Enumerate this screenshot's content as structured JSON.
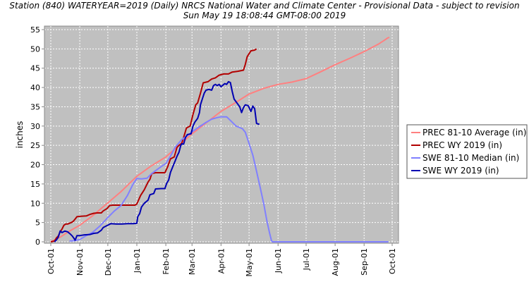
{
  "title_line1": "Station (840) WATERYEAR=2019 (Daily) NRCS National Water and Climate Center - Provisional Data - subject to revision",
  "title_line2": "Sun May 19 18:08:44 GMT-08:00 2019",
  "chart_data": {
    "type": "line",
    "ylabel": "inches",
    "ylim": [
      0,
      56
    ],
    "yticks": [
      0,
      5,
      10,
      15,
      20,
      25,
      30,
      35,
      40,
      45,
      50,
      55
    ],
    "xlim": [
      0,
      365
    ],
    "xticks": [
      {
        "label": "Oct-01",
        "day": 0
      },
      {
        "label": "Nov-01",
        "day": 31
      },
      {
        "label": "Dec-01",
        "day": 61
      },
      {
        "label": "Jan-01",
        "day": 92
      },
      {
        "label": "Feb-01",
        "day": 123
      },
      {
        "label": "Mar-01",
        "day": 151
      },
      {
        "label": "Apr-01",
        "day": 182
      },
      {
        "label": "May-01",
        "day": 212
      },
      {
        "label": "Jun-01",
        "day": 243
      },
      {
        "label": "Jul-01",
        "day": 273
      },
      {
        "label": "Aug-01",
        "day": 304
      },
      {
        "label": "Sep-01",
        "day": 335
      },
      {
        "label": "Oct-01",
        "day": 365
      }
    ],
    "grid": true,
    "background": "#c0c0c0",
    "legend_position": "right",
    "series": [
      {
        "name": "PREC 81-10 Average (in)",
        "color": "#ff8080",
        "points": [
          [
            0,
            0
          ],
          [
            10,
            1.2
          ],
          [
            20,
            2.8
          ],
          [
            31,
            4.3
          ],
          [
            45,
            6.8
          ],
          [
            61,
            10.1
          ],
          [
            75,
            13
          ],
          [
            92,
            17
          ],
          [
            107,
            19.6
          ],
          [
            123,
            22
          ],
          [
            137,
            25
          ],
          [
            151,
            28
          ],
          [
            166,
            30.8
          ],
          [
            182,
            33.8
          ],
          [
            197,
            36
          ],
          [
            212,
            38.3
          ],
          [
            228,
            39.8
          ],
          [
            243,
            40.8
          ],
          [
            258,
            41.4
          ],
          [
            273,
            42.3
          ],
          [
            288,
            44
          ],
          [
            304,
            45.9
          ],
          [
            320,
            47.6
          ],
          [
            335,
            49.3
          ],
          [
            350,
            51.2
          ],
          [
            357,
            52.3
          ],
          [
            360,
            52.8
          ],
          [
            362,
            53
          ]
        ]
      },
      {
        "name": "PREC WY 2019  (in)",
        "color": "#b20000",
        "points": [
          [
            0,
            0
          ],
          [
            4,
            0.2
          ],
          [
            6,
            1
          ],
          [
            8,
            1.5
          ],
          [
            10,
            2.6
          ],
          [
            12,
            3.3
          ],
          [
            14,
            4.3
          ],
          [
            16,
            4.6
          ],
          [
            18,
            4.6
          ],
          [
            20,
            4.8
          ],
          [
            22,
            5
          ],
          [
            24,
            5.3
          ],
          [
            26,
            5.9
          ],
          [
            28,
            6.5
          ],
          [
            31,
            6.6
          ],
          [
            38,
            6.7
          ],
          [
            42,
            7.1
          ],
          [
            46,
            7.4
          ],
          [
            50,
            7.5
          ],
          [
            54,
            7.5
          ],
          [
            56,
            8
          ],
          [
            60,
            8.6
          ],
          [
            63,
            9.4
          ],
          [
            66,
            9.5
          ],
          [
            72,
            9.5
          ],
          [
            78,
            9.5
          ],
          [
            84,
            9.5
          ],
          [
            90,
            9.5
          ],
          [
            92,
            9.8
          ],
          [
            96,
            12
          ],
          [
            100,
            13.5
          ],
          [
            104,
            15.5
          ],
          [
            106,
            16.2
          ],
          [
            108,
            17.7
          ],
          [
            112,
            17.9
          ],
          [
            118,
            17.9
          ],
          [
            122,
            17.9
          ],
          [
            125,
            19.5
          ],
          [
            128,
            21.5
          ],
          [
            132,
            22
          ],
          [
            135,
            24.5
          ],
          [
            137,
            25
          ],
          [
            140,
            25.5
          ],
          [
            142,
            27
          ],
          [
            145,
            29.5
          ],
          [
            149,
            30
          ],
          [
            152,
            33
          ],
          [
            155,
            35.5
          ],
          [
            157,
            36
          ],
          [
            160,
            38.5
          ],
          [
            163,
            41.2
          ],
          [
            168,
            41.5
          ],
          [
            172,
            42.2
          ],
          [
            176,
            42.5
          ],
          [
            180,
            43.2
          ],
          [
            185,
            43.5
          ],
          [
            190,
            43.5
          ],
          [
            194,
            44
          ],
          [
            200,
            44.2
          ],
          [
            206,
            44.5
          ],
          [
            208,
            46
          ],
          [
            210,
            48
          ],
          [
            214,
            49.5
          ],
          [
            218,
            49.7
          ],
          [
            220,
            50
          ]
        ]
      },
      {
        "name": "SWE 81-10 Median (in)",
        "color": "#8080ff",
        "points": [
          [
            20,
            0.2
          ],
          [
            25,
            0.3
          ],
          [
            31,
            0.6
          ],
          [
            38,
            1.6
          ],
          [
            45,
            2.5
          ],
          [
            53,
            4.2
          ],
          [
            61,
            6.3
          ],
          [
            68,
            8
          ],
          [
            75,
            9.4
          ],
          [
            82,
            12
          ],
          [
            88,
            15
          ],
          [
            92,
            16.4
          ],
          [
            97,
            16.3
          ],
          [
            103,
            16.5
          ],
          [
            108,
            17.7
          ],
          [
            113,
            18.6
          ],
          [
            118,
            19.5
          ],
          [
            123,
            20.3
          ],
          [
            128,
            22.2
          ],
          [
            133,
            24.5
          ],
          [
            140,
            26.5
          ],
          [
            146,
            27.5
          ],
          [
            151,
            28.5
          ],
          [
            158,
            29.7
          ],
          [
            165,
            30.8
          ],
          [
            172,
            31.8
          ],
          [
            178,
            32.2
          ],
          [
            182,
            32.4
          ],
          [
            188,
            32.4
          ],
          [
            194,
            31
          ],
          [
            198,
            30
          ],
          [
            202,
            29.6
          ],
          [
            205,
            29.3
          ],
          [
            208,
            28.4
          ],
          [
            212,
            25.5
          ],
          [
            216,
            22.5
          ],
          [
            220,
            18.3
          ],
          [
            224,
            14
          ],
          [
            228,
            9.5
          ],
          [
            231,
            5.5
          ],
          [
            234,
            2.2
          ],
          [
            236,
            0.3
          ],
          [
            237,
            0
          ],
          [
            260,
            0
          ],
          [
            300,
            0
          ],
          [
            340,
            0
          ],
          [
            361,
            0
          ]
        ]
      },
      {
        "name": "SWE WY 2019  (in)",
        "color": "#0000b2",
        "points": [
          [
            4,
            0
          ],
          [
            6,
            0.5
          ],
          [
            8,
            1.2
          ],
          [
            10,
            2.8
          ],
          [
            12,
            2.4
          ],
          [
            15,
            2.8
          ],
          [
            18,
            2.6
          ],
          [
            21,
            2
          ],
          [
            23,
            1.5
          ],
          [
            25,
            0.8
          ],
          [
            26,
            0.4
          ],
          [
            28,
            1.6
          ],
          [
            31,
            1.6
          ],
          [
            36,
            1.8
          ],
          [
            42,
            1.9
          ],
          [
            46,
            2.2
          ],
          [
            50,
            2.3
          ],
          [
            54,
            3
          ],
          [
            56,
            3.7
          ],
          [
            60,
            4.2
          ],
          [
            64,
            4.7
          ],
          [
            70,
            4.6
          ],
          [
            76,
            4.6
          ],
          [
            82,
            4.7
          ],
          [
            88,
            4.7
          ],
          [
            92,
            4.8
          ],
          [
            93,
            6.5
          ],
          [
            95,
            7.3
          ],
          [
            97,
            9
          ],
          [
            100,
            10
          ],
          [
            104,
            10.8
          ],
          [
            106,
            12.2
          ],
          [
            110,
            12.5
          ],
          [
            112,
            13.7
          ],
          [
            118,
            13.8
          ],
          [
            122,
            13.8
          ],
          [
            124,
            15.2
          ],
          [
            126,
            16
          ],
          [
            128,
            18
          ],
          [
            131,
            19.8
          ],
          [
            133,
            21
          ],
          [
            135,
            22.2
          ],
          [
            137,
            23.2
          ],
          [
            139,
            25
          ],
          [
            140,
            25.4
          ],
          [
            142,
            25.3
          ],
          [
            144,
            27
          ],
          [
            146,
            27.8
          ],
          [
            150,
            28
          ],
          [
            152,
            30
          ],
          [
            154,
            31
          ],
          [
            157,
            32
          ],
          [
            159,
            33.5
          ],
          [
            160,
            35.5
          ],
          [
            162,
            37
          ],
          [
            164,
            38.5
          ],
          [
            166,
            39.3
          ],
          [
            169,
            39.5
          ],
          [
            172,
            39.3
          ],
          [
            174,
            40.5
          ],
          [
            176,
            40.8
          ],
          [
            178,
            40.5
          ],
          [
            180,
            40.8
          ],
          [
            182,
            40.2
          ],
          [
            184,
            40.6
          ],
          [
            186,
            41
          ],
          [
            188,
            40.8
          ],
          [
            190,
            41.5
          ],
          [
            192,
            41.3
          ],
          [
            194,
            39
          ],
          [
            196,
            37
          ],
          [
            199,
            36
          ],
          [
            202,
            35
          ],
          [
            204,
            33.5
          ],
          [
            206,
            34.8
          ],
          [
            208,
            35.5
          ],
          [
            211,
            35.3
          ],
          [
            214,
            33.8
          ],
          [
            216,
            35.2
          ],
          [
            218,
            34.5
          ],
          [
            220,
            30.7
          ],
          [
            222,
            30.5
          ],
          [
            223,
            30.6
          ]
        ]
      }
    ]
  }
}
